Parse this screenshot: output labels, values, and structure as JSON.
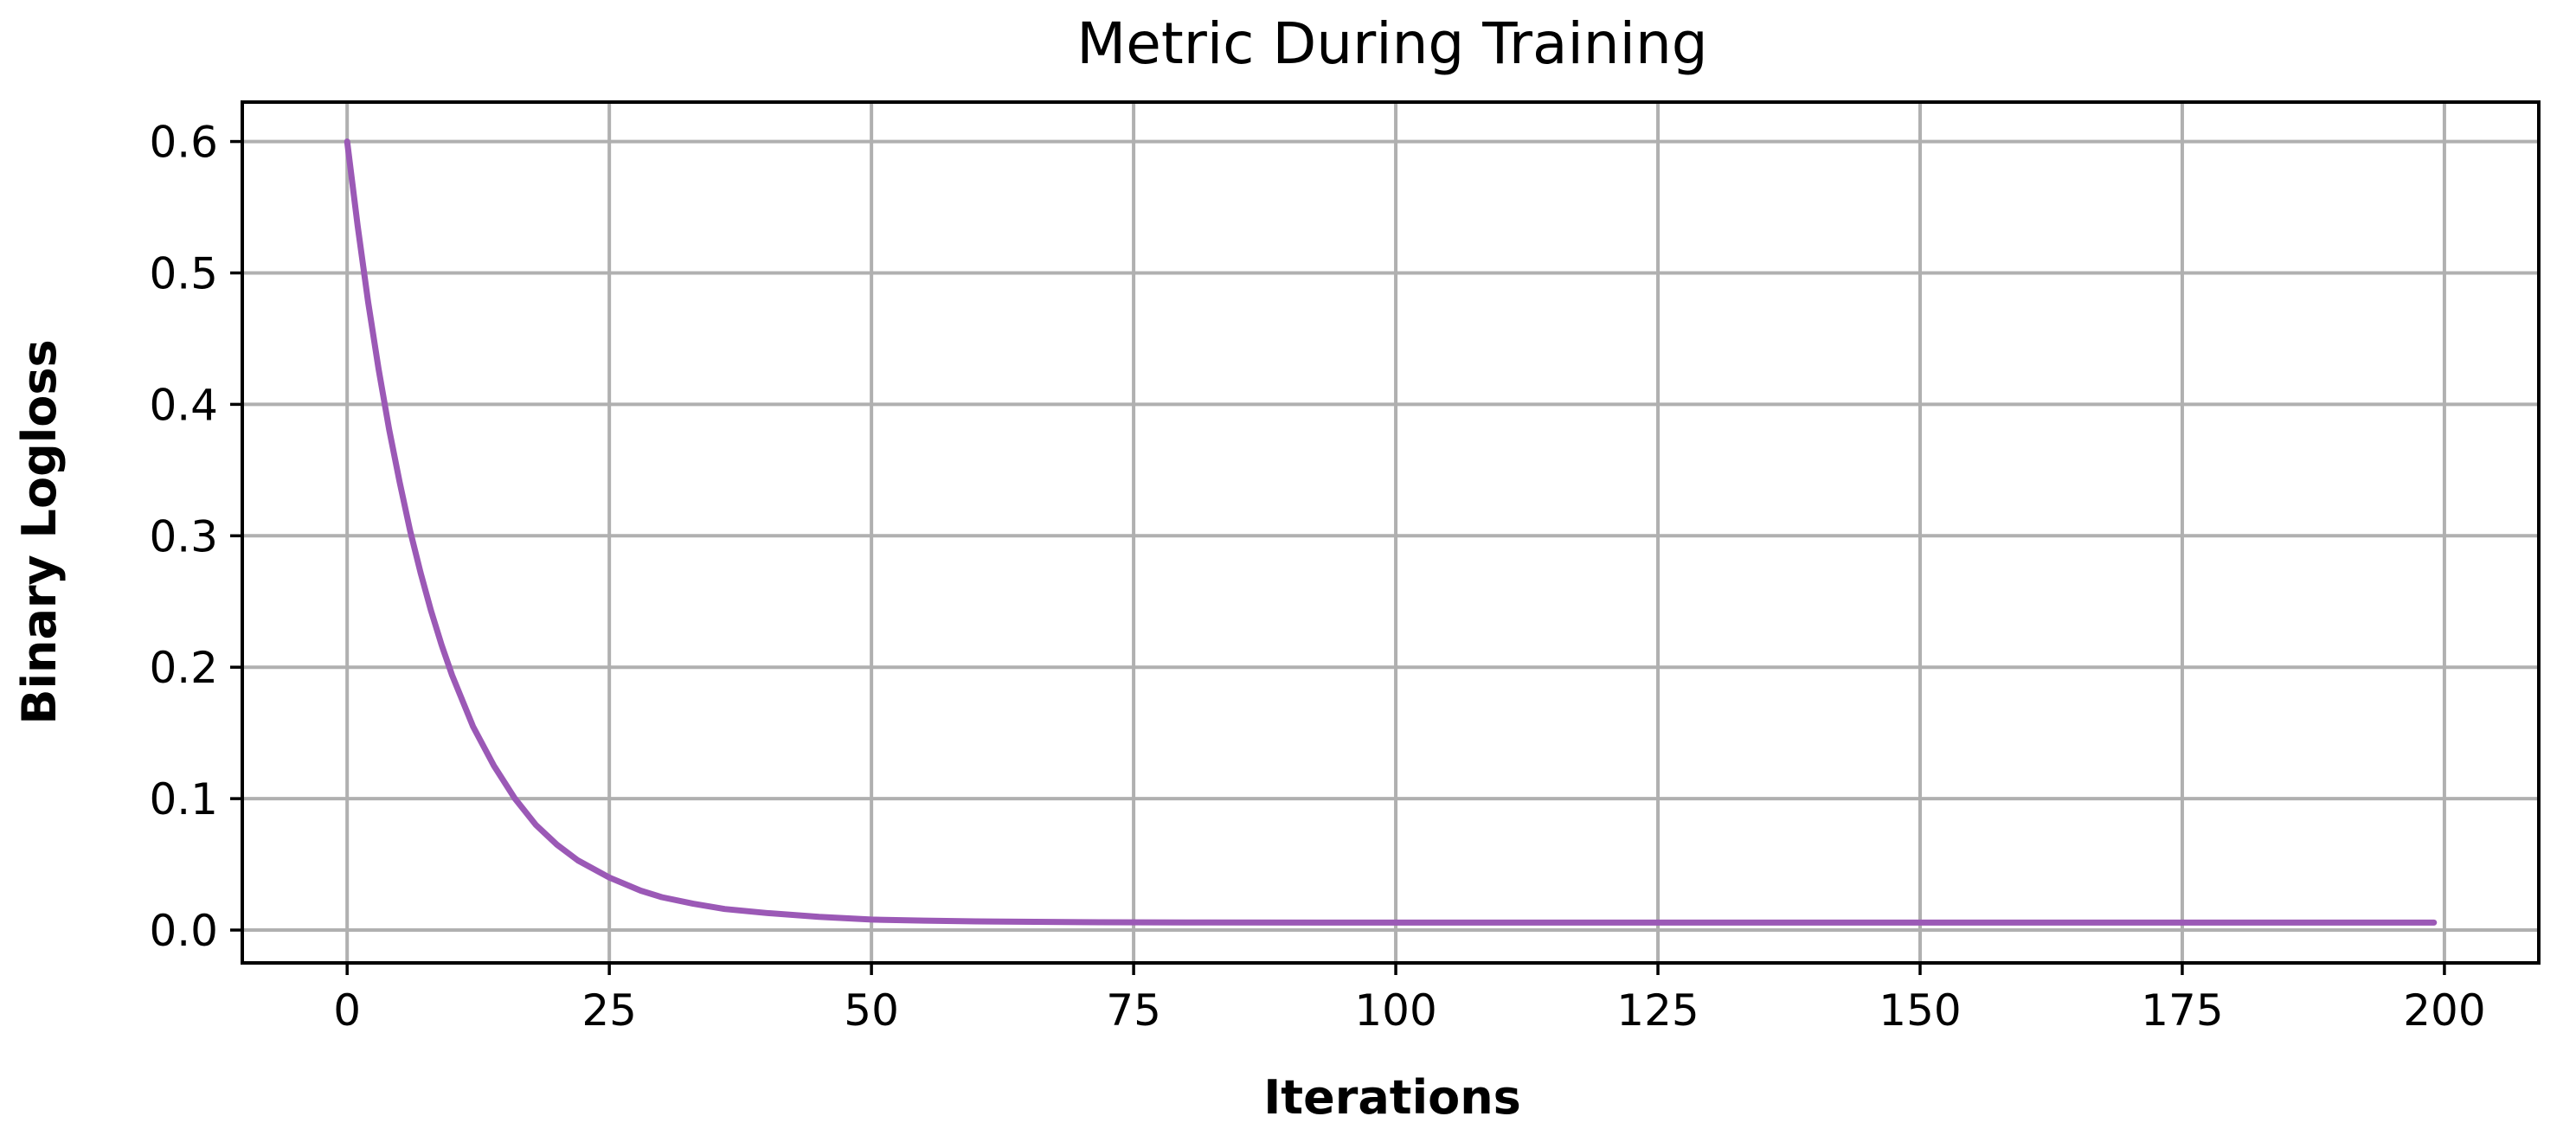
{
  "chart_data": {
    "type": "line",
    "title": "Metric During Training",
    "xlabel": "Iterations",
    "ylabel": "Binary Logloss",
    "xlim": [
      -10,
      209
    ],
    "ylim": [
      -0.025,
      0.63
    ],
    "xticks": [
      0,
      25,
      50,
      75,
      100,
      125,
      150,
      175,
      200
    ],
    "xtick_labels": [
      "0",
      "25",
      "50",
      "75",
      "100",
      "125",
      "150",
      "175",
      "200"
    ],
    "yticks": [
      0.0,
      0.1,
      0.2,
      0.3,
      0.4,
      0.5,
      0.6
    ],
    "ytick_labels": [
      "0.0",
      "0.1",
      "0.2",
      "0.3",
      "0.4",
      "0.5",
      "0.6"
    ],
    "grid": true,
    "series": [
      {
        "color": "#9b59b6",
        "x": [
          0,
          1,
          2,
          3,
          4,
          5,
          6,
          7,
          8,
          9,
          10,
          12,
          14,
          16,
          18,
          20,
          22,
          25,
          28,
          30,
          33,
          36,
          40,
          45,
          50,
          55,
          60,
          70,
          80,
          100,
          120,
          140,
          160,
          180,
          199
        ],
        "y": [
          0.6,
          0.536,
          0.478,
          0.427,
          0.381,
          0.341,
          0.304,
          0.272,
          0.243,
          0.217,
          0.194,
          0.155,
          0.125,
          0.1,
          0.08,
          0.065,
          0.053,
          0.04,
          0.03,
          0.025,
          0.02,
          0.016,
          0.013,
          0.01,
          0.008,
          0.0072,
          0.0066,
          0.006,
          0.0058,
          0.0057,
          0.0057,
          0.0057,
          0.0057,
          0.0057,
          0.0057
        ]
      }
    ]
  }
}
